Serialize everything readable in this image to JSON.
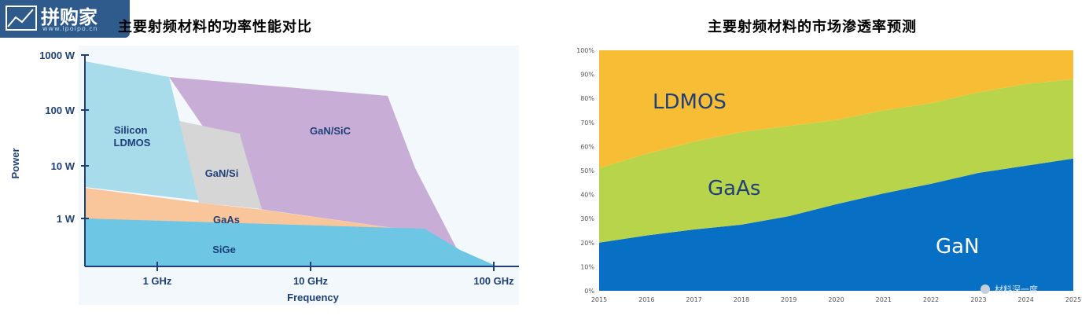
{
  "logo": {
    "text": "拼购家",
    "url": "www.ipoipo.cn"
  },
  "chart_data": [
    {
      "type": "area",
      "title": "主要射频材料的功率性能对比",
      "xlabel": "Frequency",
      "ylabel": "Power",
      "x_scale": "log",
      "y_scale": "log",
      "x_ticks": [
        "1 GHz",
        "10 GHz",
        "100 GHz"
      ],
      "y_ticks": [
        "1000 W",
        "100 W",
        "10 W",
        "1 W"
      ],
      "regions": [
        {
          "name": "Silicon LDMOS",
          "label": "Silicon\nLDMOS",
          "color": "#a9dceb"
        },
        {
          "name": "GaN/SiC",
          "label": "GaN/SiC",
          "color": "#c8aed6"
        },
        {
          "name": "GaN/Si",
          "label": "GaN/Si",
          "color": "#d6d6d6"
        },
        {
          "name": "GaAs",
          "label": "GaAs",
          "color": "#f8c69a"
        },
        {
          "name": "SiGe",
          "label": "SiGe",
          "color": "#6cc6e4"
        }
      ]
    },
    {
      "type": "area",
      "stacked": true,
      "title": "主要射频材料的市场渗透率预测",
      "x": [
        2015,
        2016,
        2017,
        2018,
        2019,
        2020,
        2021,
        2022,
        2023,
        2024,
        2025
      ],
      "ylim": [
        0,
        100
      ],
      "y_ticks": [
        "0%",
        "10%",
        "20%",
        "30%",
        "40%",
        "50%",
        "60%",
        "70%",
        "80%",
        "90%",
        "100%"
      ],
      "series": [
        {
          "name": "GaN",
          "color": "#0870c4",
          "values": [
            20,
            23,
            25.5,
            27.5,
            31,
            36,
            40.5,
            44.5,
            49,
            52,
            55
          ]
        },
        {
          "name": "GaAs",
          "color": "#b7d44b",
          "values": [
            31,
            34,
            36.5,
            38.5,
            37.5,
            35,
            34.5,
            33.5,
            33.5,
            34,
            33
          ]
        },
        {
          "name": "LDMOS",
          "color": "#f7be35",
          "values": [
            49,
            43,
            38,
            34,
            31.5,
            29,
            25,
            22,
            17.5,
            14,
            12
          ]
        }
      ]
    }
  ],
  "watermark": "材料深一度"
}
